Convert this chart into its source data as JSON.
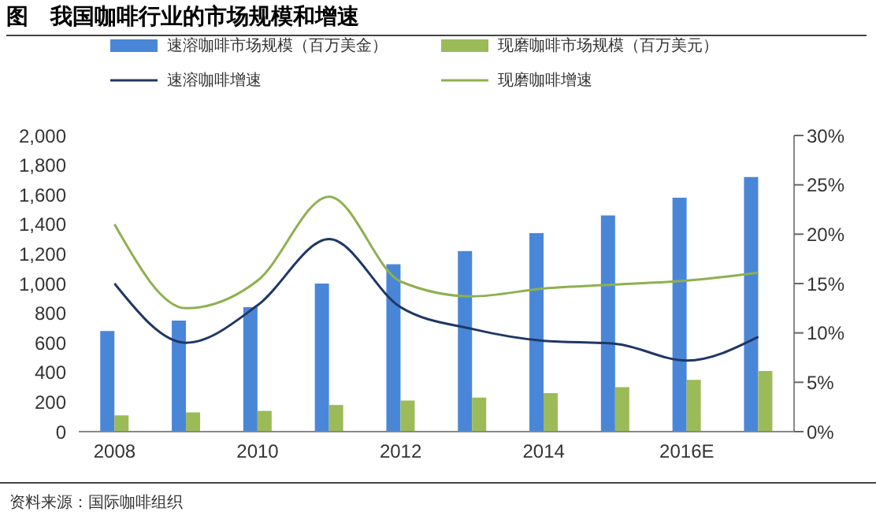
{
  "chart_data": {
    "type": "bar",
    "title": "图　我国咖啡行业的市场规模和增速",
    "categories": [
      "2008",
      null,
      "2010",
      null,
      "2012",
      null,
      "2014",
      null,
      "2016E",
      null
    ],
    "series": [
      {
        "name": "速溶咖啡市场规模（百万美金）",
        "color": "#4a86d8",
        "values": [
          680,
          750,
          840,
          1000,
          1130,
          1220,
          1340,
          1460,
          1580,
          1720
        ]
      },
      {
        "name": "现磨咖啡市场规模（百万美元）",
        "color": "#9bbb59",
        "values": [
          110,
          130,
          140,
          180,
          210,
          230,
          260,
          300,
          350,
          410
        ]
      },
      {
        "name": "速溶咖啡增速",
        "type": "line",
        "axis": "y2",
        "color": "#1f3864",
        "values": [
          15,
          9,
          12.8,
          19.5,
          12.6,
          10.4,
          9.2,
          8.9,
          7.2,
          9.6
        ]
      },
      {
        "name": "现磨咖啡增速",
        "type": "line",
        "axis": "y2",
        "color": "#8fb04f",
        "values": [
          21,
          12.5,
          15.3,
          23.8,
          15.2,
          13.7,
          14.5,
          14.9,
          15.3,
          16.1
        ]
      }
    ],
    "ylim": [
      0,
      2000
    ],
    "yticks": [
      {
        "value": 0,
        "label": "0"
      },
      {
        "value": 200,
        "label": "200"
      },
      {
        "value": 400,
        "label": "400"
      },
      {
        "value": 600,
        "label": "600"
      },
      {
        "value": 800,
        "label": "800"
      },
      {
        "value": 1000,
        "label": "1,000"
      },
      {
        "value": 1200,
        "label": "1,200"
      },
      {
        "value": 1400,
        "label": "1,400"
      },
      {
        "value": 1600,
        "label": "1,600"
      },
      {
        "value": 1800,
        "label": "1,800"
      },
      {
        "value": 2000,
        "label": "2,000"
      }
    ],
    "y2lim": [
      0,
      30
    ],
    "y2ticks": [
      {
        "value": 0,
        "label": "0%"
      },
      {
        "value": 5,
        "label": "5%"
      },
      {
        "value": 10,
        "label": "10%"
      },
      {
        "value": 15,
        "label": "15%"
      },
      {
        "value": 20,
        "label": "20%"
      },
      {
        "value": 25,
        "label": "25%"
      },
      {
        "value": 30,
        "label": "30%"
      }
    ],
    "legend": "top",
    "marker": "none",
    "line_style": "solid",
    "annotations": [
      "资料来源：国际咖啡组织"
    ]
  }
}
